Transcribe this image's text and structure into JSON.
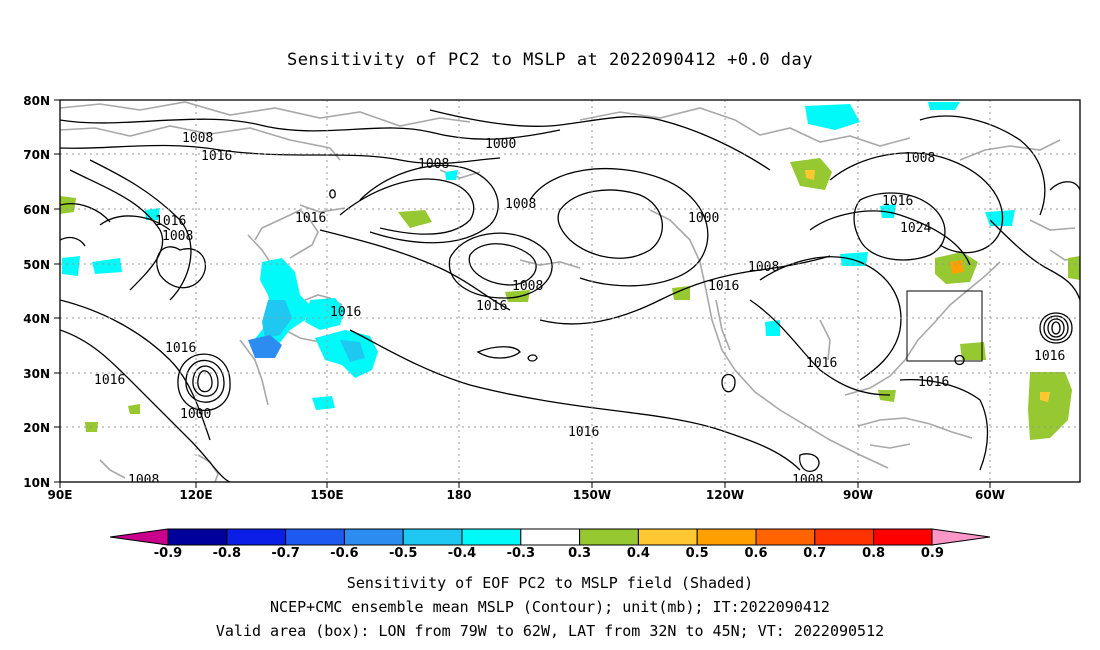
{
  "title": "Sensitivity of PC2 to MSLP at 2022090412 +0.0 day",
  "lat_labels": [
    "80N",
    "70N",
    "60N",
    "50N",
    "40N",
    "30N",
    "20N",
    "10N"
  ],
  "lon_labels": [
    "90E",
    "120E",
    "150E",
    "180",
    "150W",
    "120W",
    "90W",
    "60W"
  ],
  "contour_labels": [
    {
      "text": "1008"
    },
    {
      "text": "1016"
    },
    {
      "text": "1000"
    },
    {
      "text": "1008"
    },
    {
      "text": "1008"
    },
    {
      "text": "1016"
    },
    {
      "text": "1016"
    },
    {
      "text": "1008"
    },
    {
      "text": "1000"
    },
    {
      "text": "1008"
    },
    {
      "text": "1016"
    },
    {
      "text": "1016"
    },
    {
      "text": "1016"
    },
    {
      "text": "1008"
    },
    {
      "text": "1016"
    },
    {
      "text": "1024"
    },
    {
      "text": "1008"
    },
    {
      "text": "1016"
    },
    {
      "text": "1016"
    },
    {
      "text": "1016"
    },
    {
      "text": "1016"
    },
    {
      "text": "1000"
    },
    {
      "text": "1016"
    },
    {
      "text": "1008"
    },
    {
      "text": "1008"
    },
    {
      "text": "1016"
    }
  ],
  "colorbar": {
    "labels": [
      "-0.9",
      "-0.8",
      "-0.7",
      "-0.6",
      "-0.5",
      "-0.4",
      "-0.3",
      "0.3",
      "0.4",
      "0.5",
      "0.6",
      "0.7",
      "0.8",
      "0.9"
    ],
    "colors": [
      "#00009c",
      "#0a1ee6",
      "#1e5af0",
      "#2d8cf0",
      "#1ec8f0",
      "#00fafa",
      "#ffffff",
      "#96c832",
      "#ffc832",
      "#ffa000",
      "#ff6400",
      "#ff3200",
      "#ff0000"
    ],
    "left_tip": "#c8008c",
    "right_tip": "#ff96c8"
  },
  "captions": {
    "line1": "Sensitivity of EOF PC2 to MSLP field (Shaded)",
    "line2": "NCEP+CMC ensemble mean MSLP (Contour); unit(mb); IT:2022090412",
    "line3": "Valid area (box): LON from 79W to 62W, LAT from 32N to 45N; VT: 2022090512"
  }
}
